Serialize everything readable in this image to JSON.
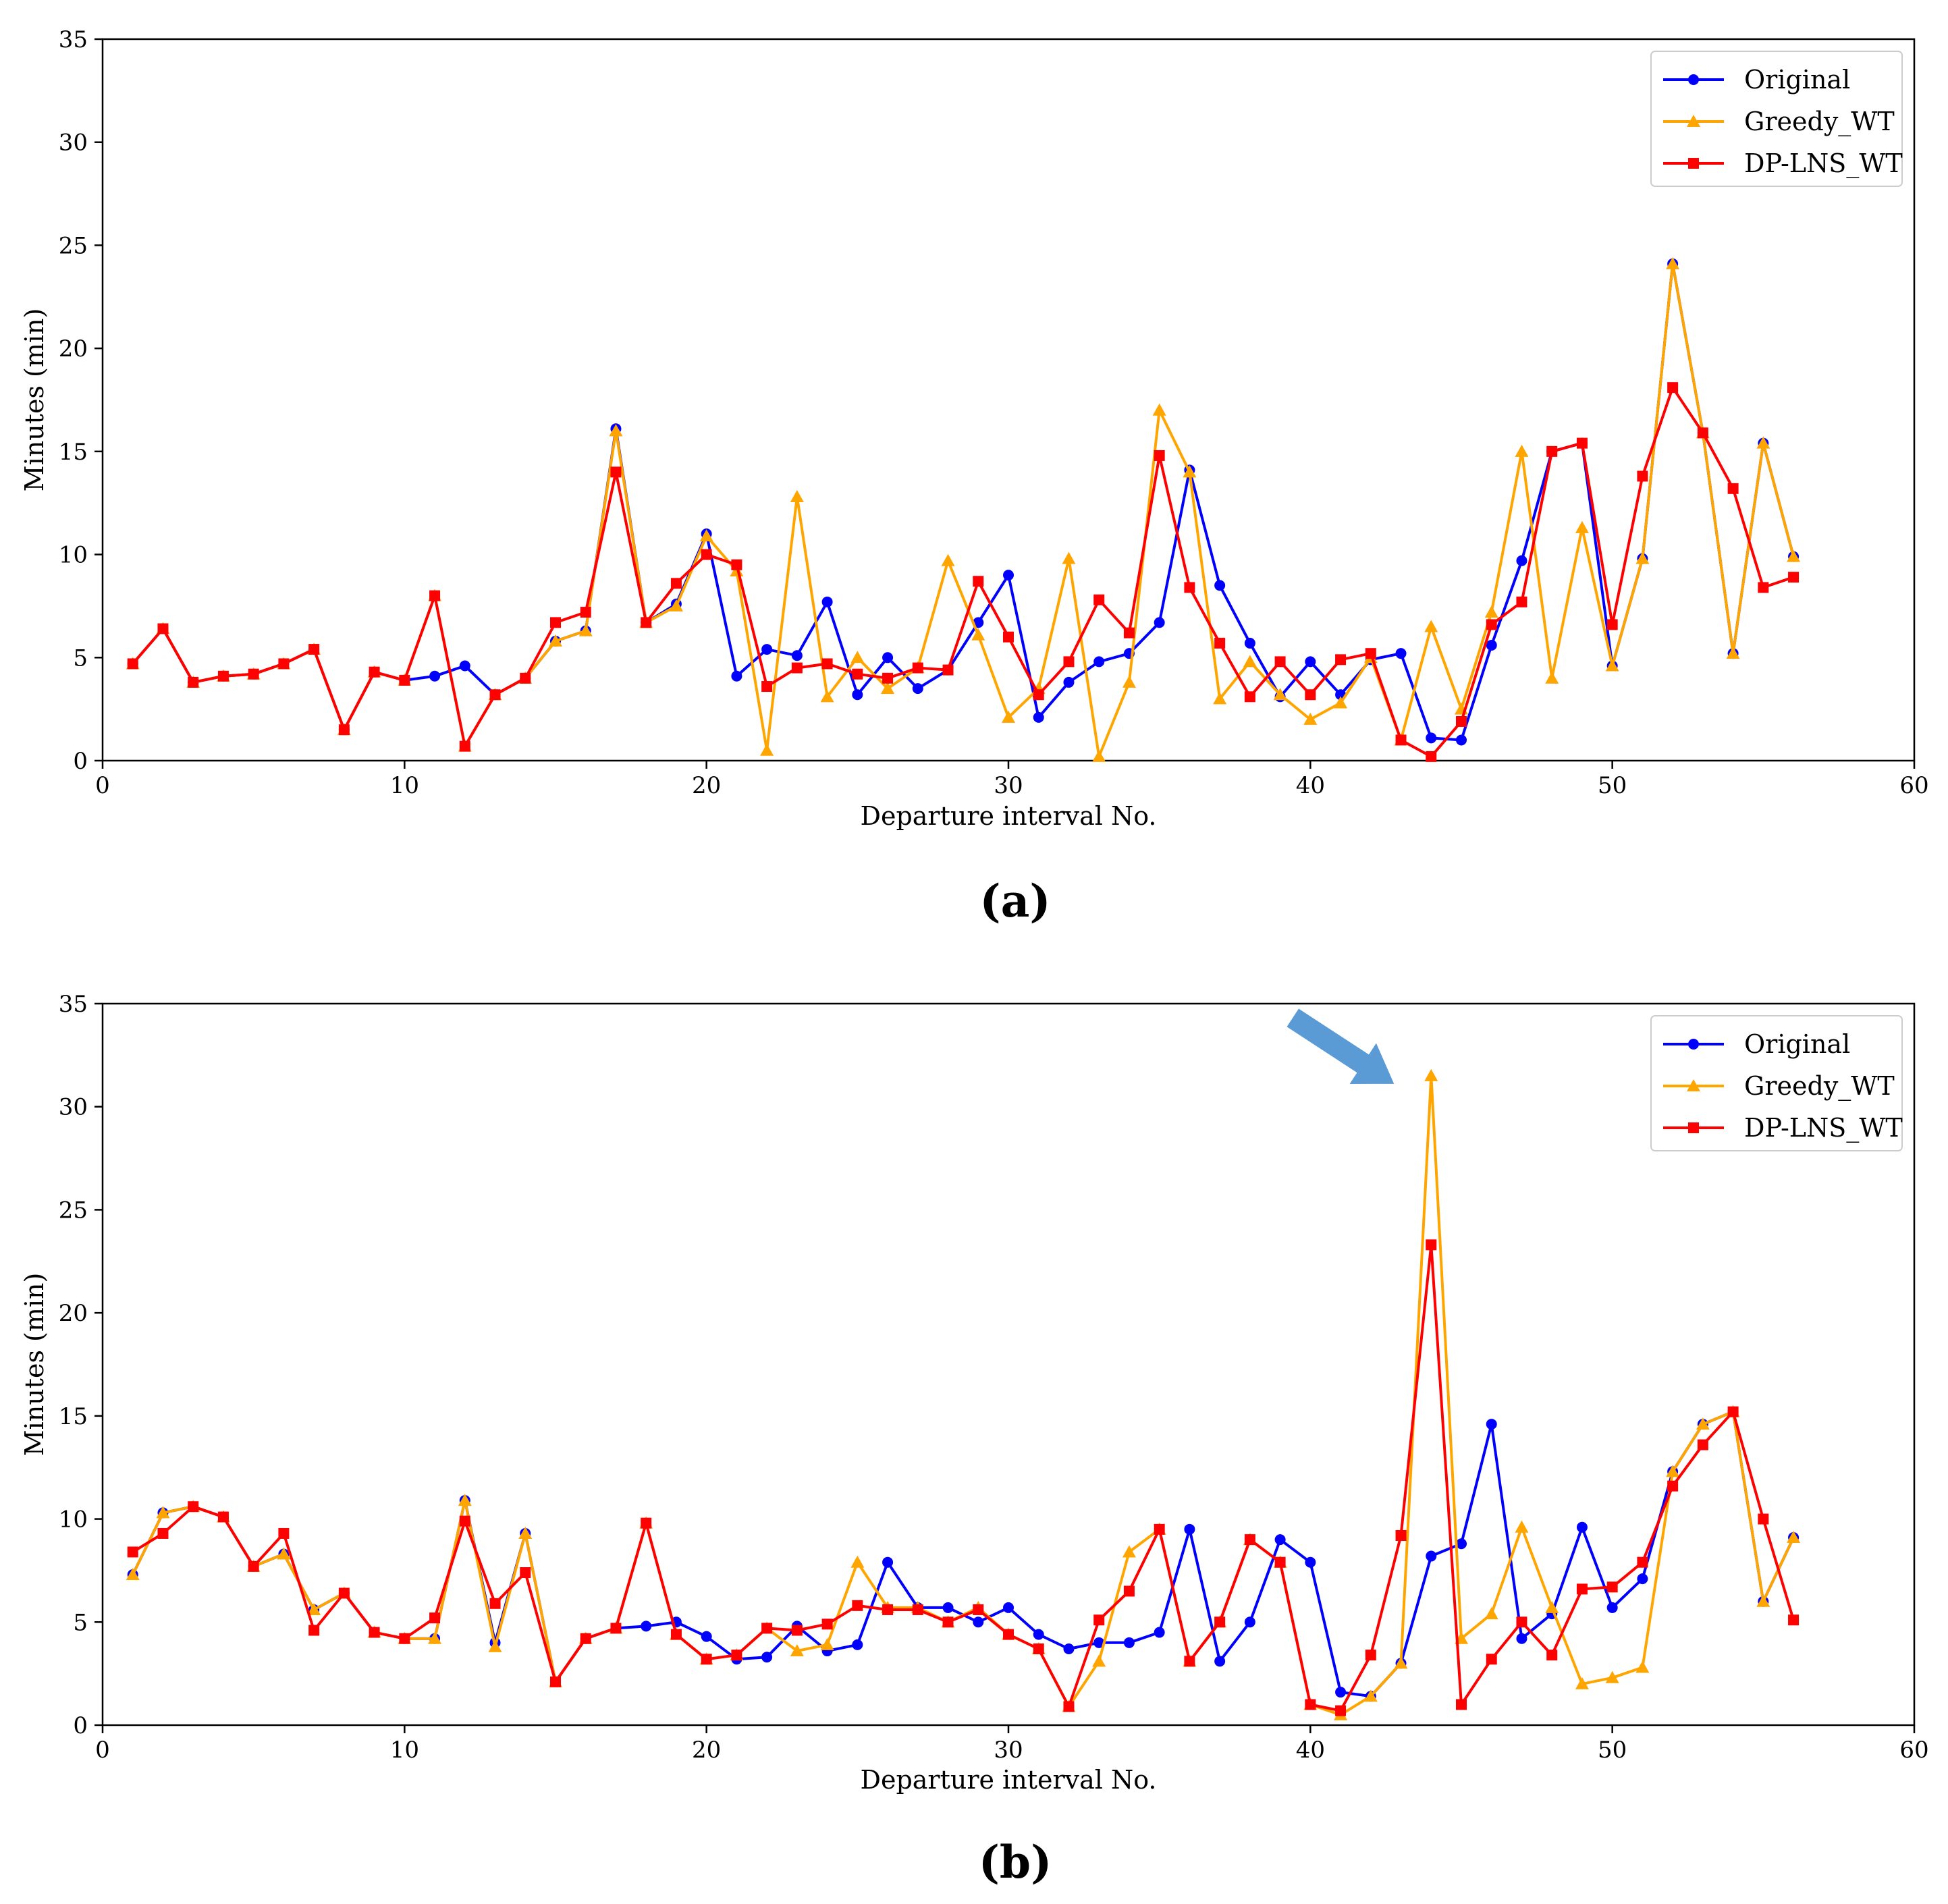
{
  "chart_data": [
    {
      "type": "line",
      "panel_label": "(a)",
      "xlabel": "Departure interval No.",
      "ylabel": "Minutes (min)",
      "xlim": [
        0,
        60
      ],
      "ylim": [
        0,
        35
      ],
      "xticks": [
        0,
        10,
        20,
        30,
        40,
        50,
        60
      ],
      "yticks": [
        0,
        5,
        10,
        15,
        20,
        25,
        30,
        35
      ],
      "legend_position": "top-right",
      "x": [
        1,
        2,
        3,
        4,
        5,
        6,
        7,
        8,
        9,
        10,
        11,
        12,
        13,
        14,
        15,
        16,
        17,
        18,
        19,
        20,
        21,
        22,
        23,
        24,
        25,
        26,
        27,
        28,
        29,
        30,
        31,
        32,
        33,
        34,
        35,
        36,
        37,
        38,
        39,
        40,
        41,
        42,
        43,
        44,
        45,
        46,
        47,
        48,
        49,
        50,
        51,
        52,
        53,
        54,
        55,
        56
      ],
      "series": [
        {
          "name": "Original",
          "color": "#0000ff",
          "marker": "circle",
          "values": [
            4.7,
            6.4,
            3.8,
            4.1,
            4.2,
            4.7,
            5.4,
            1.5,
            4.3,
            3.9,
            4.1,
            4.6,
            3.2,
            4.0,
            5.8,
            6.3,
            16.1,
            6.7,
            7.6,
            11.0,
            4.1,
            5.4,
            5.1,
            7.7,
            3.2,
            5.0,
            3.5,
            4.4,
            6.7,
            9.0,
            2.1,
            3.8,
            4.8,
            5.2,
            6.7,
            14.1,
            8.5,
            5.7,
            3.1,
            4.8,
            3.2,
            4.9,
            5.2,
            1.1,
            1.0,
            5.6,
            9.7,
            15.0,
            15.4,
            4.6,
            9.8,
            24.1,
            15.9,
            5.2,
            15.4,
            9.9
          ]
        },
        {
          "name": "Greedy_WT",
          "color": "#ffa500",
          "marker": "triangle",
          "values": [
            4.7,
            6.4,
            3.8,
            4.1,
            4.2,
            4.7,
            5.4,
            1.5,
            4.3,
            3.9,
            8.0,
            0.7,
            3.2,
            4.0,
            5.8,
            6.3,
            16.0,
            6.7,
            7.5,
            10.9,
            9.2,
            0.5,
            12.8,
            3.1,
            5.0,
            3.5,
            4.5,
            9.7,
            6.1,
            2.1,
            3.5,
            9.8,
            0.2,
            3.8,
            17.0,
            14.0,
            3.0,
            4.8,
            3.2,
            2.0,
            2.8,
            5.0,
            1.0,
            6.5,
            2.5,
            7.2,
            15.0,
            4.0,
            11.3,
            4.6,
            9.8,
            24.1,
            15.9,
            5.2,
            15.4,
            9.9
          ]
        },
        {
          "name": "DP-LNS_WT",
          "color": "#ff0000",
          "marker": "square",
          "values": [
            4.7,
            6.4,
            3.8,
            4.1,
            4.2,
            4.7,
            5.4,
            1.5,
            4.3,
            3.9,
            8.0,
            0.7,
            3.2,
            4.0,
            6.7,
            7.2,
            14.0,
            6.7,
            8.6,
            10.0,
            9.5,
            3.6,
            4.5,
            4.7,
            4.2,
            4.0,
            4.5,
            4.4,
            8.7,
            6.0,
            3.2,
            4.8,
            7.8,
            6.2,
            14.8,
            8.4,
            5.7,
            3.1,
            4.8,
            3.2,
            4.9,
            5.2,
            1.0,
            0.2,
            1.9,
            6.6,
            7.7,
            15.0,
            15.4,
            6.6,
            13.8,
            18.1,
            15.9,
            13.2,
            8.4,
            8.9
          ]
        }
      ]
    },
    {
      "type": "line",
      "panel_label": "(b)",
      "xlabel": "Departure interval No.",
      "ylabel": "Minutes (min)",
      "xlim": [
        0,
        60
      ],
      "ylim": [
        0,
        35
      ],
      "xticks": [
        0,
        10,
        20,
        30,
        40,
        50,
        60
      ],
      "yticks": [
        0,
        5,
        10,
        15,
        20,
        25,
        30,
        35
      ],
      "legend_position": "top-right",
      "annotation": {
        "type": "arrow",
        "points_to_x": 44,
        "points_to_y": 31.5,
        "color": "#5b9bd5"
      },
      "x": [
        1,
        2,
        3,
        4,
        5,
        6,
        7,
        8,
        9,
        10,
        11,
        12,
        13,
        14,
        15,
        16,
        17,
        18,
        19,
        20,
        21,
        22,
        23,
        24,
        25,
        26,
        27,
        28,
        29,
        30,
        31,
        32,
        33,
        34,
        35,
        36,
        37,
        38,
        39,
        40,
        41,
        42,
        43,
        44,
        45,
        46,
        47,
        48,
        49,
        50,
        51,
        52,
        53,
        54,
        55,
        56
      ],
      "series": [
        {
          "name": "Original",
          "color": "#0000ff",
          "marker": "circle",
          "values": [
            7.3,
            10.3,
            10.6,
            10.1,
            7.7,
            8.3,
            5.6,
            6.4,
            4.5,
            4.2,
            4.2,
            10.9,
            4.0,
            9.3,
            2.1,
            4.2,
            4.7,
            4.8,
            5.0,
            4.3,
            3.2,
            3.3,
            4.8,
            3.6,
            3.9,
            7.9,
            5.7,
            5.7,
            5.0,
            5.7,
            4.4,
            3.7,
            4.0,
            4.0,
            4.5,
            9.5,
            3.1,
            5.0,
            9.0,
            7.9,
            1.6,
            1.4,
            3.0,
            8.2,
            8.8,
            14.6,
            4.2,
            5.4,
            9.6,
            5.7,
            7.1,
            12.3,
            14.6,
            15.2,
            6.0,
            9.1
          ]
        },
        {
          "name": "Greedy_WT",
          "color": "#ffa500",
          "marker": "triangle",
          "values": [
            7.3,
            10.3,
            10.6,
            10.1,
            7.7,
            8.3,
            5.6,
            6.4,
            4.5,
            4.2,
            4.2,
            10.9,
            3.8,
            9.3,
            2.1,
            4.2,
            4.7,
            9.8,
            4.4,
            3.2,
            3.4,
            4.7,
            3.6,
            3.9,
            7.9,
            5.7,
            5.7,
            5.0,
            5.7,
            4.4,
            3.7,
            0.9,
            3.1,
            8.4,
            9.5,
            3.1,
            5.0,
            9.0,
            7.9,
            1.0,
            0.5,
            1.4,
            3.0,
            31.5,
            4.2,
            5.4,
            9.6,
            5.7,
            2.0,
            2.3,
            2.8,
            12.3,
            14.6,
            15.2,
            6.0,
            9.1
          ]
        },
        {
          "name": "DP-LNS_WT",
          "color": "#ff0000",
          "marker": "square",
          "values": [
            8.4,
            9.3,
            10.6,
            10.1,
            7.7,
            9.3,
            4.6,
            6.4,
            4.5,
            4.2,
            5.2,
            9.9,
            5.9,
            7.4,
            2.1,
            4.2,
            4.7,
            9.8,
            4.4,
            3.2,
            3.4,
            4.7,
            4.6,
            4.9,
            5.8,
            5.6,
            5.6,
            5.0,
            5.6,
            4.4,
            3.7,
            0.9,
            5.1,
            6.5,
            9.5,
            3.1,
            5.0,
            9.0,
            7.9,
            1.0,
            0.7,
            3.4,
            9.2,
            23.3,
            1.0,
            3.2,
            5.0,
            3.4,
            6.6,
            6.7,
            7.9,
            11.6,
            13.6,
            15.2,
            10.0,
            5.1
          ]
        }
      ]
    }
  ]
}
